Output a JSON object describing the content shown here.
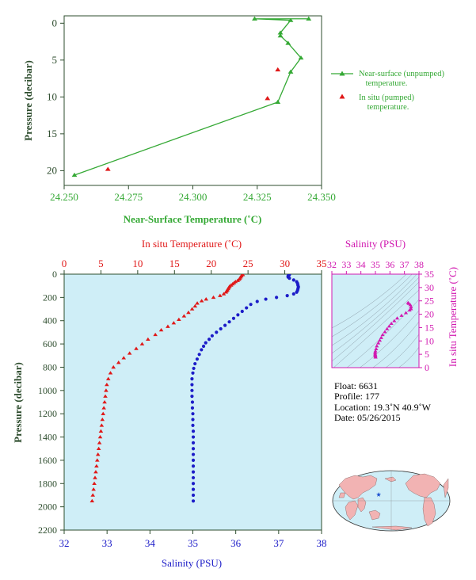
{
  "colors": {
    "near_surface": "#35a935",
    "temperature": "#e01818",
    "salinity": "#1c1cc8",
    "ts": "#d119b0",
    "axis_dark": "#2e4d2e",
    "plot_bg": "#cfeef7"
  },
  "chart_data": [
    {
      "id": "near-surface-temp",
      "type": "line",
      "xlabel": "Near-Surface Temperature (˚C)",
      "ylabel": "Pressure (decibar)",
      "xlim": [
        24.25,
        24.35
      ],
      "ylim": [
        22,
        -1
      ],
      "y_inverted": true,
      "x_ticks": [
        "24.250",
        "24.275",
        "24.300",
        "24.325",
        "24.350"
      ],
      "y_ticks": [
        "0",
        "5",
        "10",
        "15",
        "20"
      ],
      "legend_position": "right",
      "series": [
        {
          "name": "Near-surface (unpumped) temperature.",
          "style": "line-triangle",
          "points": [
            [
              24.345,
              -0.6
            ],
            [
              24.324,
              -0.6
            ],
            [
              24.338,
              -0.4
            ],
            [
              24.334,
              1.3
            ],
            [
              24.334,
              1.7
            ],
            [
              24.337,
              2.7
            ],
            [
              24.342,
              4.7
            ],
            [
              24.338,
              6.6
            ],
            [
              24.333,
              10.7
            ],
            [
              24.254,
              20.6
            ]
          ]
        },
        {
          "name": "In situ (pumped) temperature.",
          "style": "triangle",
          "points": [
            [
              24.333,
              6.3
            ],
            [
              24.329,
              10.2
            ],
            [
              24.267,
              19.8
            ]
          ]
        }
      ]
    },
    {
      "id": "profile",
      "type": "scatter",
      "ylabel": "Pressure (decibar)",
      "ylim": [
        2200,
        0
      ],
      "y_inverted": true,
      "y_ticks": [
        "0",
        "200",
        "400",
        "600",
        "800",
        "1000",
        "1200",
        "1400",
        "1600",
        "1800",
        "2000",
        "2200"
      ],
      "top_axis": {
        "label": "In situ Temperature (˚C)",
        "range": [
          0,
          35
        ],
        "ticks": [
          "0",
          "5",
          "10",
          "15",
          "20",
          "25",
          "30",
          "35"
        ]
      },
      "bottom_axis": {
        "label": "Salinity (PSU)",
        "range": [
          32,
          38
        ],
        "ticks": [
          "32",
          "33",
          "34",
          "35",
          "36",
          "37",
          "38"
        ]
      },
      "series": [
        {
          "quantity": "temperature",
          "marker": "triangle",
          "points": [
            [
              24.3,
              5
            ],
            [
              24.1,
              15
            ],
            [
              24.0,
              25
            ],
            [
              23.9,
              35
            ],
            [
              23.8,
              45
            ],
            [
              23.6,
              55
            ],
            [
              23.3,
              65
            ],
            [
              23.1,
              75
            ],
            [
              22.9,
              85
            ],
            [
              22.7,
              95
            ],
            [
              22.5,
              105
            ],
            [
              22.4,
              115
            ],
            [
              22.3,
              125
            ],
            [
              22.2,
              135
            ],
            [
              22.1,
              145
            ],
            [
              22.0,
              155
            ],
            [
              21.7,
              170
            ],
            [
              21.2,
              185
            ],
            [
              20.3,
              200
            ],
            [
              19.3,
              215
            ],
            [
              18.7,
              230
            ],
            [
              18.1,
              250
            ],
            [
              17.8,
              275
            ],
            [
              17.4,
              300
            ],
            [
              16.9,
              330
            ],
            [
              16.3,
              360
            ],
            [
              15.6,
              390
            ],
            [
              14.9,
              420
            ],
            [
              14.1,
              450
            ],
            [
              13.2,
              480
            ],
            [
              12.4,
              520
            ],
            [
              11.4,
              560
            ],
            [
              10.6,
              600
            ],
            [
              9.8,
              640
            ],
            [
              8.9,
              680
            ],
            [
              8.1,
              720
            ],
            [
              7.4,
              760
            ],
            [
              6.7,
              800
            ],
            [
              6.3,
              850
            ],
            [
              6.0,
              900
            ],
            [
              5.8,
              950
            ],
            [
              5.7,
              1000
            ],
            [
              5.6,
              1050
            ],
            [
              5.5,
              1100
            ],
            [
              5.4,
              1150
            ],
            [
              5.3,
              1200
            ],
            [
              5.2,
              1250
            ],
            [
              5.1,
              1300
            ],
            [
              5.0,
              1350
            ],
            [
              4.9,
              1400
            ],
            [
              4.8,
              1450
            ],
            [
              4.7,
              1500
            ],
            [
              4.6,
              1550
            ],
            [
              4.5,
              1600
            ],
            [
              4.4,
              1650
            ],
            [
              4.3,
              1700
            ],
            [
              4.2,
              1750
            ],
            [
              4.1,
              1800
            ],
            [
              4.0,
              1850
            ],
            [
              3.9,
              1900
            ],
            [
              3.8,
              1950
            ]
          ]
        },
        {
          "quantity": "salinity",
          "marker": "circle",
          "points": [
            [
              37.25,
              5
            ],
            [
              37.22,
              15
            ],
            [
              37.22,
              25
            ],
            [
              37.25,
              35
            ],
            [
              37.35,
              50
            ],
            [
              37.42,
              65
            ],
            [
              37.44,
              80
            ],
            [
              37.45,
              95
            ],
            [
              37.46,
              110
            ],
            [
              37.45,
              125
            ],
            [
              37.44,
              140
            ],
            [
              37.42,
              155
            ],
            [
              37.35,
              170
            ],
            [
              37.2,
              185
            ],
            [
              36.95,
              200
            ],
            [
              36.7,
              215
            ],
            [
              36.5,
              235
            ],
            [
              36.35,
              260
            ],
            [
              36.25,
              290
            ],
            [
              36.15,
              320
            ],
            [
              36.05,
              350
            ],
            [
              35.95,
              380
            ],
            [
              35.85,
              410
            ],
            [
              35.75,
              440
            ],
            [
              35.65,
              470
            ],
            [
              35.55,
              500
            ],
            [
              35.45,
              530
            ],
            [
              35.38,
              560
            ],
            [
              35.3,
              590
            ],
            [
              35.25,
              620
            ],
            [
              35.2,
              650
            ],
            [
              35.15,
              690
            ],
            [
              35.1,
              730
            ],
            [
              35.05,
              770
            ],
            [
              35.02,
              810
            ],
            [
              35.0,
              850
            ],
            [
              34.98,
              900
            ],
            [
              34.98,
              950
            ],
            [
              34.98,
              1000
            ],
            [
              34.98,
              1050
            ],
            [
              34.99,
              1100
            ],
            [
              34.99,
              1150
            ],
            [
              35.0,
              1200
            ],
            [
              35.0,
              1250
            ],
            [
              35.0,
              1300
            ],
            [
              35.01,
              1350
            ],
            [
              35.01,
              1400
            ],
            [
              35.01,
              1450
            ],
            [
              35.01,
              1500
            ],
            [
              35.01,
              1550
            ],
            [
              35.01,
              1600
            ],
            [
              35.01,
              1650
            ],
            [
              35.01,
              1700
            ],
            [
              35.01,
              1750
            ],
            [
              35.01,
              1800
            ],
            [
              35.01,
              1850
            ],
            [
              35.01,
              1900
            ],
            [
              35.01,
              1950
            ]
          ]
        }
      ]
    },
    {
      "id": "ts-diagram",
      "type": "scatter",
      "xlabel": "Salinity (PSU)",
      "ylabel": "In situ Temperature (˚C)",
      "xlim": [
        32,
        38
      ],
      "ylim": [
        0,
        35
      ],
      "x_ticks": [
        "32",
        "33",
        "34",
        "35",
        "36",
        "37",
        "38"
      ],
      "y_ticks": [
        "0",
        "5",
        "10",
        "15",
        "20",
        "25",
        "30",
        "35"
      ],
      "points": [
        [
          37.25,
          24.3
        ],
        [
          37.3,
          24.0
        ],
        [
          37.4,
          23.5
        ],
        [
          37.45,
          22.7
        ],
        [
          37.45,
          22.0
        ],
        [
          37.35,
          21.5
        ],
        [
          37.1,
          20.5
        ],
        [
          36.8,
          19.5
        ],
        [
          36.5,
          18.5
        ],
        [
          36.3,
          17.5
        ],
        [
          36.1,
          16.5
        ],
        [
          35.95,
          15.5
        ],
        [
          35.8,
          14.5
        ],
        [
          35.65,
          13.4
        ],
        [
          35.5,
          12.3
        ],
        [
          35.4,
          11.2
        ],
        [
          35.3,
          10.2
        ],
        [
          35.2,
          9.2
        ],
        [
          35.1,
          8.1
        ],
        [
          35.05,
          7.0
        ],
        [
          35.0,
          6.2
        ],
        [
          34.98,
          5.6
        ],
        [
          34.98,
          5.1
        ],
        [
          34.99,
          4.7
        ],
        [
          35.0,
          4.3
        ],
        [
          35.01,
          3.9
        ]
      ]
    }
  ],
  "legend": [
    {
      "line1": "Near-surface (unpumped)",
      "line2": "temperature."
    },
    {
      "line1": "In situ (pumped)",
      "line2": "temperature."
    }
  ],
  "info": {
    "float": "Float:  6631",
    "profile": "Profile:  177",
    "location": "Location:  19.3˚N  40.9˚W",
    "date": "Date:  05/26/2015"
  },
  "map": {
    "marker_lat": 19.3,
    "marker_lon": -40.9
  }
}
